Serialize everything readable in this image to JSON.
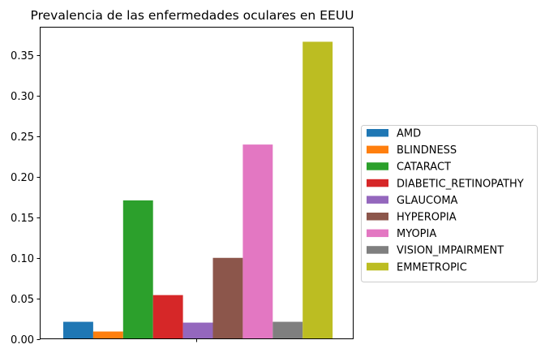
{
  "chart_data": {
    "type": "bar",
    "title": "Prevalencia de las enfermedades oculares en EEUU",
    "xlabel": "",
    "ylabel": "",
    "ylim": [
      0,
      0.385
    ],
    "yticks": [
      "0.00",
      "0.05",
      "0.10",
      "0.15",
      "0.20",
      "0.25",
      "0.30",
      "0.35"
    ],
    "grid": false,
    "legend_position": "center-right-outside",
    "series": [
      {
        "name": "AMD",
        "value": 0.021,
        "color": "#1f77b4"
      },
      {
        "name": "BLINDNESS",
        "value": 0.009,
        "color": "#ff7f0e"
      },
      {
        "name": "CATARACT",
        "value": 0.171,
        "color": "#2ca02c"
      },
      {
        "name": "DIABETIC_RETINOPATHY",
        "value": 0.054,
        "color": "#d62728"
      },
      {
        "name": "GLAUCOMA",
        "value": 0.02,
        "color": "#9467bd"
      },
      {
        "name": "HYPEROPIA",
        "value": 0.1,
        "color": "#8c564b"
      },
      {
        "name": "MYOPIA",
        "value": 0.24,
        "color": "#e377c2"
      },
      {
        "name": "VISION_IMPAIRMENT",
        "value": 0.021,
        "color": "#7f7f7f"
      },
      {
        "name": "EMMETROPIC",
        "value": 0.367,
        "color": "#bcbd22"
      }
    ]
  }
}
